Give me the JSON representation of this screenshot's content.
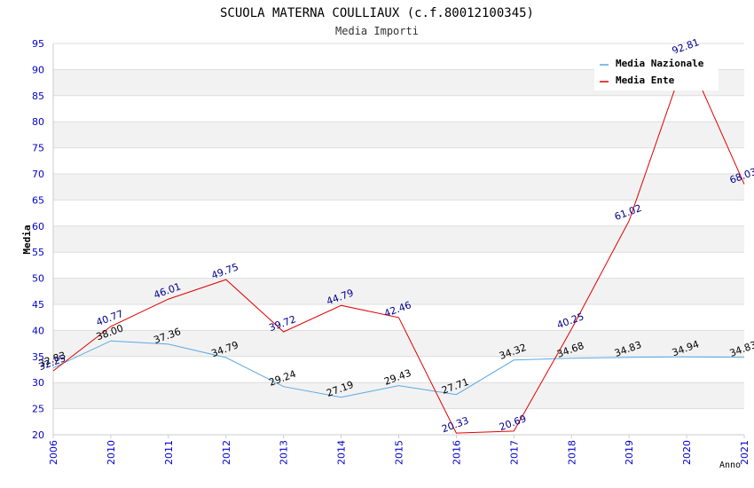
{
  "chart_data": {
    "type": "line",
    "title": "SCUOLA MATERNA COULLIAUX (c.f.80012100345)",
    "subtitle": "Media Importi",
    "xlabel": "Anno",
    "ylabel": "Media",
    "ylim": [
      20,
      95
    ],
    "yticks": [
      "20",
      "25",
      "30",
      "35",
      "40",
      "45",
      "50",
      "55",
      "60",
      "65",
      "70",
      "75",
      "80",
      "85",
      "90",
      "95"
    ],
    "categories": [
      "2006",
      "2010",
      "2011",
      "2012",
      "2013",
      "2014",
      "2015",
      "2016",
      "2017",
      "2018",
      "2019",
      "2020",
      "2021"
    ],
    "grid": true,
    "legend_position": "top-right",
    "series": [
      {
        "name": "Media Nazionale",
        "color": "#5aa9e6",
        "label_color": "#000000",
        "values": [
          32.83,
          38.0,
          37.36,
          34.79,
          29.24,
          27.19,
          29.43,
          27.71,
          34.32,
          34.68,
          34.83,
          34.94,
          34.83
        ],
        "labels": [
          "32.83",
          "38.00",
          "37.36",
          "34.79",
          "29.24",
          "27.19",
          "29.43",
          "27.71",
          "34.32",
          "34.68",
          "34.83",
          "34.94",
          "34.83"
        ]
      },
      {
        "name": "Media Ente",
        "color": "#e00000",
        "label_color": "#00008b",
        "values": [
          32.25,
          40.77,
          46.01,
          49.75,
          39.72,
          44.79,
          42.46,
          20.33,
          20.69,
          40.25,
          61.02,
          92.81,
          68.03
        ],
        "labels": [
          "32.25",
          "40.77",
          "46.01",
          "49.75",
          "39.72",
          "44.79",
          "42.46",
          "20.33",
          "20.69",
          "40.25",
          "61.02",
          "92.81",
          "68.03"
        ]
      }
    ]
  }
}
